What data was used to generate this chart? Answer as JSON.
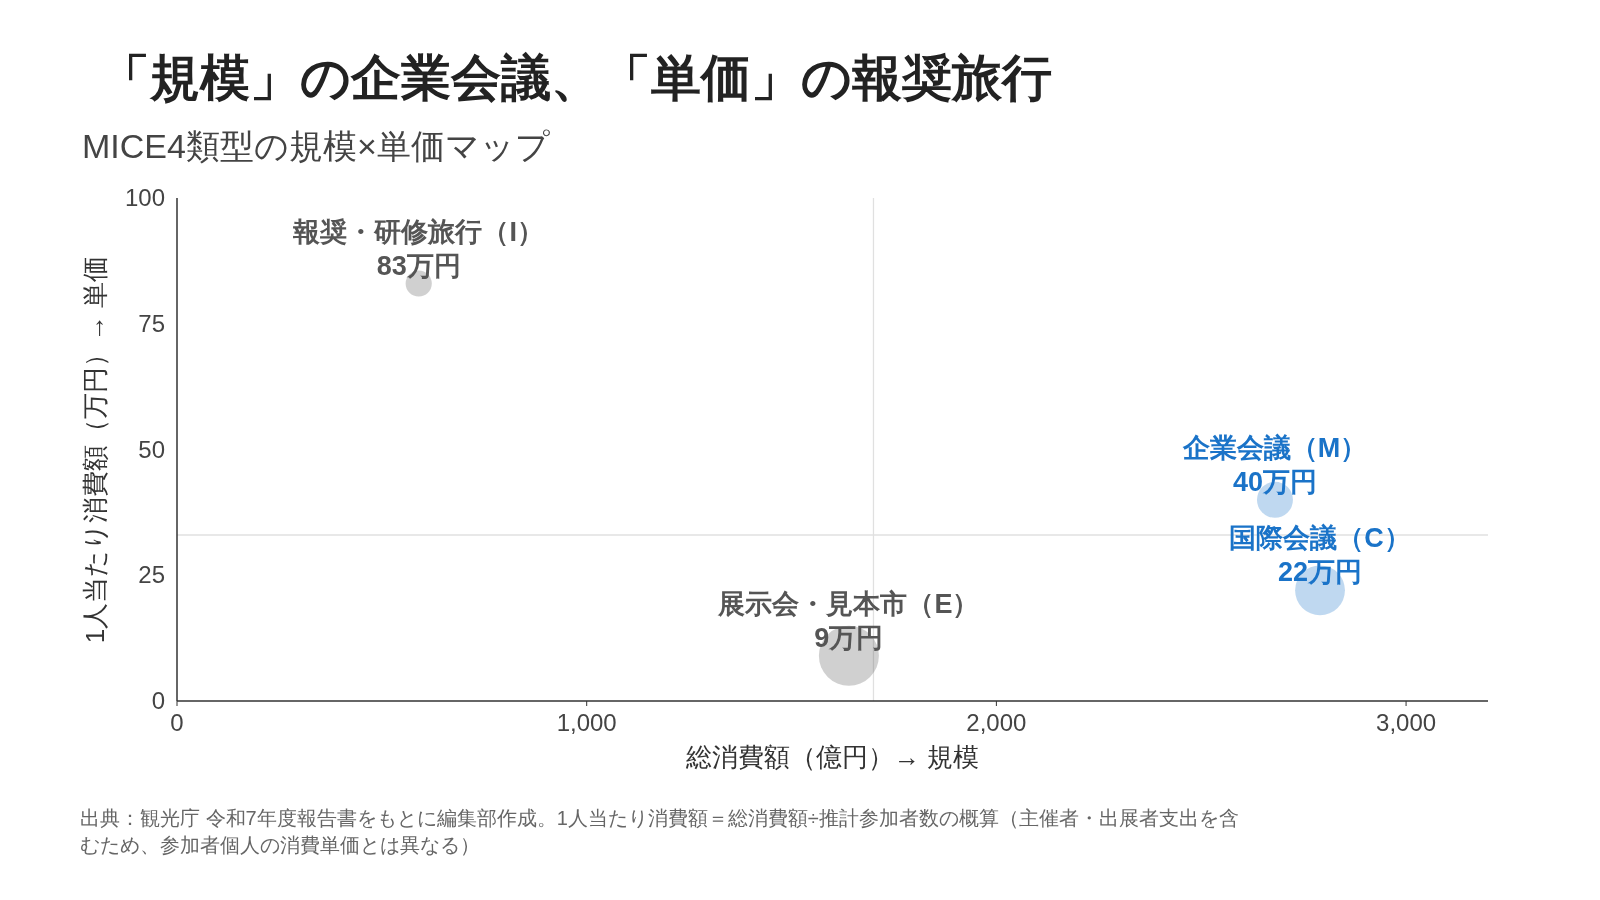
{
  "chart_data": {
    "type": "bubble",
    "title": "「規模」の企業会議、「単価」の報奨旅行",
    "subtitle": "MICE4類型の規模×単価マップ",
    "xlabel": "総消費額（億円）→ 規模",
    "ylabel": "1人当たり消費額（万円）→ 単価",
    "xlim": [
      0,
      3200
    ],
    "xticks": [
      0,
      {
        "value": 1000,
        "label": "1,000"
      },
      {
        "value": 2000,
        "label": "2,000"
      },
      {
        "value": 3000,
        "label": "3,000"
      }
    ],
    "ylim": [
      0,
      100
    ],
    "yticks": [
      0,
      25,
      50,
      75,
      100
    ],
    "grid": false,
    "ref_lines": [
      {
        "axis": "x",
        "value": 1700,
        "color": "#e0e0e0"
      },
      {
        "axis": "y",
        "value": 33,
        "color": "#e0e0e0"
      }
    ],
    "series": [
      {
        "name": "報奨・研修旅行（I）",
        "color": "#555555",
        "x": [
          590
        ],
        "values": [
          83
        ],
        "sizes": [
          0.19
        ],
        "value_labels": [
          "83万円"
        ]
      },
      {
        "name": "展示会・見本市（E）",
        "color": "#555555",
        "x": [
          1640
        ],
        "values": [
          9
        ],
        "sizes": [
          1
        ],
        "value_labels": [
          "9万円"
        ]
      },
      {
        "name": "企業会議（M）",
        "color": "#1a73c8",
        "x": [
          2680
        ],
        "values": [
          40
        ],
        "sizes": [
          0.36
        ],
        "value_labels": [
          "40万円"
        ]
      },
      {
        "name": "国際会議（C）",
        "color": "#1a73c8",
        "x": [
          2790
        ],
        "values": [
          22
        ],
        "sizes": [
          0.69
        ],
        "value_labels": [
          "22万円"
        ]
      }
    ],
    "annotations": [
      "出典：観光庁 令和7年度報告書をもとに編集部作成。1人当たり消費額＝総消費額÷推計参加者数の概算（主催者・出展者支出を含むため、参加者個人の消費単価とは異なる）"
    ]
  }
}
